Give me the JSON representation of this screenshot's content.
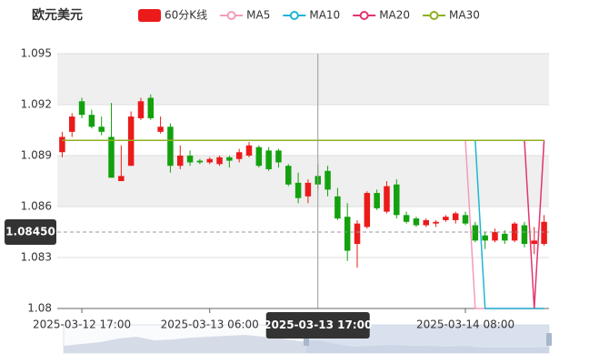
{
  "chart_data": {
    "type": "candlestick",
    "title": "欧元美元",
    "categories": [
      null,
      null,
      "2025-03-12 17:00",
      null,
      null,
      null,
      null,
      null,
      null,
      null,
      null,
      null,
      null,
      null,
      null,
      "2025-03-13 06:00",
      null,
      null,
      null,
      null,
      null,
      null,
      null,
      null,
      null,
      null,
      "2025-03-13 17:00",
      null,
      null,
      null,
      null,
      null,
      null,
      null,
      null,
      null,
      null,
      null,
      null,
      null,
      null,
      "2025-03-14 08:00",
      null,
      null,
      null,
      null,
      null,
      null,
      null,
      null
    ],
    "ylim": [
      1.08,
      1.095
    ],
    "yticks": [
      1.08,
      1.083,
      1.086,
      1.089,
      1.092,
      1.095
    ],
    "grid": true,
    "crosshair": {
      "index": 26,
      "value": 1.0845,
      "label": "1.08450"
    },
    "series": [
      {
        "name": "60分K线",
        "color": "#eb1b1b",
        "down_color": "#13a10e",
        "open": [
          1.0892,
          1.0904,
          1.0922,
          1.0914,
          1.0907,
          1.0901,
          1.0875,
          1.0884,
          1.0912,
          1.0924,
          1.0904,
          1.0907,
          1.0884,
          1.089,
          1.0887,
          1.0886,
          1.0885,
          1.0889,
          1.0888,
          1.089,
          1.0895,
          1.0893,
          1.0893,
          1.0884,
          1.0874,
          1.0866,
          1.0878,
          1.0881,
          1.0866,
          1.0854,
          1.0838,
          1.0848,
          1.0868,
          1.0857,
          1.0873,
          1.0855,
          1.0853,
          1.0849,
          1.085,
          1.0852,
          1.0852,
          1.0855,
          1.0849,
          1.0843,
          1.084,
          1.0844,
          1.084,
          1.0849,
          1.0838,
          1.0838
        ],
        "close": [
          1.0901,
          1.0913,
          1.0914,
          1.0907,
          1.0904,
          1.0877,
          1.0878,
          1.0913,
          1.0922,
          1.0912,
          1.0907,
          1.0884,
          1.089,
          1.0886,
          1.0886,
          1.0888,
          1.0889,
          1.0887,
          1.0892,
          1.0896,
          1.0884,
          1.0882,
          1.0886,
          1.0873,
          1.0865,
          1.0874,
          1.0873,
          1.087,
          1.0853,
          1.0834,
          1.085,
          1.0868,
          1.0859,
          1.0872,
          1.0855,
          1.0851,
          1.0849,
          1.0852,
          1.0851,
          1.0854,
          1.0856,
          1.085,
          1.084,
          1.084,
          1.0845,
          1.084,
          1.085,
          1.0838,
          1.084,
          1.0851
        ],
        "low": [
          1.0889,
          1.0901,
          1.0912,
          1.0906,
          1.0902,
          1.0877,
          1.0875,
          1.0884,
          1.0911,
          1.0911,
          1.0903,
          1.088,
          1.0882,
          1.0884,
          1.0885,
          1.0885,
          1.0884,
          1.0883,
          1.0886,
          1.0889,
          1.0883,
          1.0881,
          1.0883,
          1.0872,
          1.0862,
          1.0862,
          1.087,
          1.0866,
          1.0852,
          1.0828,
          1.0824,
          1.0847,
          1.0858,
          1.0856,
          1.0853,
          1.085,
          1.0848,
          1.0848,
          1.0848,
          1.0851,
          1.085,
          1.0849,
          1.0839,
          1.0835,
          1.0839,
          1.0838,
          1.0839,
          1.0836,
          1.0832,
          1.0837
        ],
        "high": [
          1.0904,
          1.0915,
          1.0924,
          1.0917,
          1.0913,
          1.0921,
          1.0896,
          1.0916,
          1.0924,
          1.0926,
          1.0913,
          1.0909,
          1.0896,
          1.0893,
          1.0888,
          1.0889,
          1.089,
          1.089,
          1.0894,
          1.0898,
          1.0896,
          1.0895,
          1.0894,
          1.0885,
          1.088,
          1.0876,
          1.0885,
          1.0884,
          1.0871,
          1.0862,
          1.0852,
          1.0869,
          1.087,
          1.0875,
          1.0876,
          1.0857,
          1.0854,
          1.0853,
          1.0852,
          1.0855,
          1.0857,
          1.0857,
          1.0851,
          1.0845,
          1.0847,
          1.0846,
          1.0851,
          1.0851,
          1.0848,
          1.0855
        ]
      },
      {
        "name": "MA5",
        "color": "#f39bbd",
        "values": [
          1.0899,
          1.0899,
          1.0899,
          1.0899,
          1.0899,
          1.0899,
          1.0899,
          1.0899,
          1.0899,
          1.0899,
          1.0899,
          1.0899,
          1.0899,
          1.0899,
          1.0899,
          1.0899,
          1.0899,
          1.0899,
          1.0899,
          1.0899,
          1.0899,
          1.0899,
          1.0899,
          1.0899,
          1.0899,
          1.0899,
          1.0899,
          1.0899,
          1.0899,
          1.0899,
          1.0899,
          1.0899,
          1.0899,
          1.0899,
          1.0899,
          1.0899,
          1.0899,
          1.0899,
          1.0899,
          1.0899,
          1.0899,
          1.0899,
          1.08,
          1.08,
          1.08,
          1.08,
          1.08,
          1.08,
          1.08,
          1.08
        ]
      },
      {
        "name": "MA10",
        "color": "#1fb5d3",
        "values": [
          1.0899,
          1.0899,
          1.0899,
          1.0899,
          1.0899,
          1.0899,
          1.0899,
          1.0899,
          1.0899,
          1.0899,
          1.0899,
          1.0899,
          1.0899,
          1.0899,
          1.0899,
          1.0899,
          1.0899,
          1.0899,
          1.0899,
          1.0899,
          1.0899,
          1.0899,
          1.0899,
          1.0899,
          1.0899,
          1.0899,
          1.0899,
          1.0899,
          1.0899,
          1.0899,
          1.0899,
          1.0899,
          1.0899,
          1.0899,
          1.0899,
          1.0899,
          1.0899,
          1.0899,
          1.0899,
          1.0899,
          1.0899,
          1.0899,
          1.0899,
          1.08,
          1.08,
          1.08,
          1.08,
          1.08,
          1.08,
          1.08
        ]
      },
      {
        "name": "MA20",
        "color": "#e0366f",
        "values": [
          1.0899,
          1.0899,
          1.0899,
          1.0899,
          1.0899,
          1.0899,
          1.0899,
          1.0899,
          1.0899,
          1.0899,
          1.0899,
          1.0899,
          1.0899,
          1.0899,
          1.0899,
          1.0899,
          1.0899,
          1.0899,
          1.0899,
          1.0899,
          1.0899,
          1.0899,
          1.0899,
          1.0899,
          1.0899,
          1.0899,
          1.0899,
          1.0899,
          1.0899,
          1.0899,
          1.0899,
          1.0899,
          1.0899,
          1.0899,
          1.0899,
          1.0899,
          1.0899,
          1.0899,
          1.0899,
          1.0899,
          1.0899,
          1.0899,
          1.0899,
          1.0899,
          1.0899,
          1.0899,
          1.0899,
          1.0899,
          1.08,
          1.0899
        ]
      },
      {
        "name": "MA30",
        "color": "#8fb021",
        "values": [
          1.0899,
          1.0899,
          1.0899,
          1.0899,
          1.0899,
          1.0899,
          1.0899,
          1.0899,
          1.0899,
          1.0899,
          1.0899,
          1.0899,
          1.0899,
          1.0899,
          1.0899,
          1.0899,
          1.0899,
          1.0899,
          1.0899,
          1.0899,
          1.0899,
          1.0899,
          1.0899,
          1.0899,
          1.0899,
          1.0899,
          1.0899,
          1.0899,
          1.0899,
          1.0899,
          1.0899,
          1.0899,
          1.0899,
          1.0899,
          1.0899,
          1.0899,
          1.0899,
          1.0899,
          1.0899,
          1.0899,
          1.0899,
          1.0899,
          1.0899,
          1.0899,
          1.0899,
          1.0899,
          1.0899,
          1.0899,
          1.0899,
          1.0899
        ]
      }
    ]
  }
}
